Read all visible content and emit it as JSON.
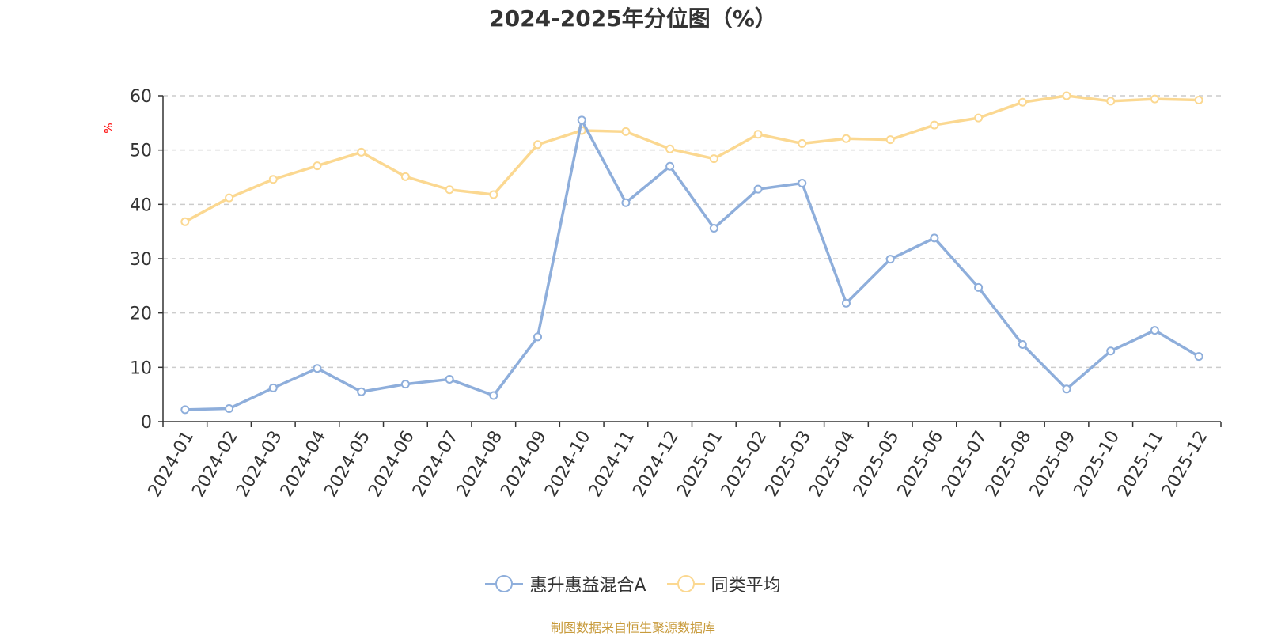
{
  "chart_data": {
    "type": "line",
    "title": "2024-2025年分位图（%）",
    "ylabel": "%",
    "xlabel": "",
    "ylim": [
      0,
      60
    ],
    "yticks": [
      0,
      10,
      20,
      30,
      40,
      50,
      60
    ],
    "grid": true,
    "legend_position": "bottom-center",
    "categories": [
      "2024-01",
      "2024-02",
      "2024-03",
      "2024-04",
      "2024-05",
      "2024-06",
      "2024-07",
      "2024-08",
      "2024-09",
      "2024-10",
      "2024-11",
      "2024-12",
      "2025-01",
      "2025-02",
      "2025-03",
      "2025-04",
      "2025-05",
      "2025-06",
      "2025-07",
      "2025-08",
      "2025-09",
      "2025-10",
      "2025-11",
      "2025-12"
    ],
    "series": [
      {
        "name": "惠升惠益混合A",
        "color": "#8eaedb",
        "values": [
          2.2,
          2.4,
          6.2,
          9.8,
          5.5,
          6.9,
          7.8,
          4.8,
          15.6,
          55.5,
          40.3,
          47.0,
          35.6,
          42.8,
          43.9,
          21.8,
          29.9,
          33.8,
          24.7,
          14.2,
          6.0,
          13.0,
          16.8,
          12.0
        ]
      },
      {
        "name": "同类平均",
        "color": "#fbd891",
        "values": [
          36.8,
          41.2,
          44.6,
          47.1,
          49.6,
          45.1,
          42.7,
          41.8,
          51.0,
          53.6,
          53.4,
          50.2,
          48.4,
          52.9,
          51.2,
          52.1,
          51.9,
          54.6,
          55.9,
          58.8,
          60.0,
          59.0,
          59.4,
          59.2
        ]
      }
    ]
  },
  "source_note": "制图数据来自恒生聚源数据库"
}
